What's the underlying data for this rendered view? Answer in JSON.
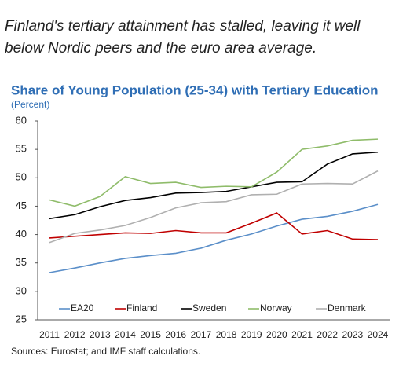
{
  "subtitle": "Finland's tertiary attainment has stalled, leaving it well below Nordic peers and the euro area average.",
  "chart_data": {
    "type": "line",
    "title": "Share of Young Population (25-34) with Tertiary Education",
    "unit": "(Percent)",
    "categories": [
      "2011",
      "2012",
      "2013",
      "2014",
      "2015",
      "2016",
      "2017",
      "2018",
      "2019",
      "2020",
      "2021",
      "2022",
      "2023",
      "2024"
    ],
    "series": [
      {
        "name": "EA20",
        "color": "#5b8fc9",
        "values": [
          33.3,
          34.1,
          35.0,
          35.8,
          36.3,
          36.7,
          37.6,
          39.0,
          40.1,
          41.5,
          42.7,
          43.2,
          44.1,
          45.3
        ]
      },
      {
        "name": "Finland",
        "color": "#c00000",
        "values": [
          39.4,
          39.7,
          40.0,
          40.3,
          40.2,
          40.7,
          40.3,
          40.3,
          42.0,
          43.8,
          40.1,
          40.7,
          39.2,
          39.1
        ]
      },
      {
        "name": "Sweden",
        "color": "#000000",
        "values": [
          42.8,
          43.5,
          44.9,
          46.0,
          46.5,
          47.3,
          47.4,
          47.6,
          48.4,
          49.2,
          49.3,
          52.4,
          54.2,
          54.5
        ]
      },
      {
        "name": "Norway",
        "color": "#8fbc6a",
        "values": [
          46.1,
          45.0,
          46.7,
          50.2,
          49.0,
          49.2,
          48.3,
          48.5,
          48.4,
          51.0,
          55.0,
          55.6,
          56.6,
          56.8
        ]
      },
      {
        "name": "Denmark",
        "color": "#b0b0b0",
        "values": [
          38.6,
          40.2,
          40.8,
          41.6,
          43.0,
          44.7,
          45.6,
          45.8,
          47.0,
          47.1,
          48.9,
          49.0,
          48.9,
          51.2
        ]
      }
    ],
    "ylim": [
      25,
      60
    ],
    "yticks": [
      25,
      30,
      35,
      40,
      45,
      50,
      55,
      60
    ],
    "legend": "bottom",
    "source": "Sources: Eurostat; and IMF staff calculations."
  }
}
